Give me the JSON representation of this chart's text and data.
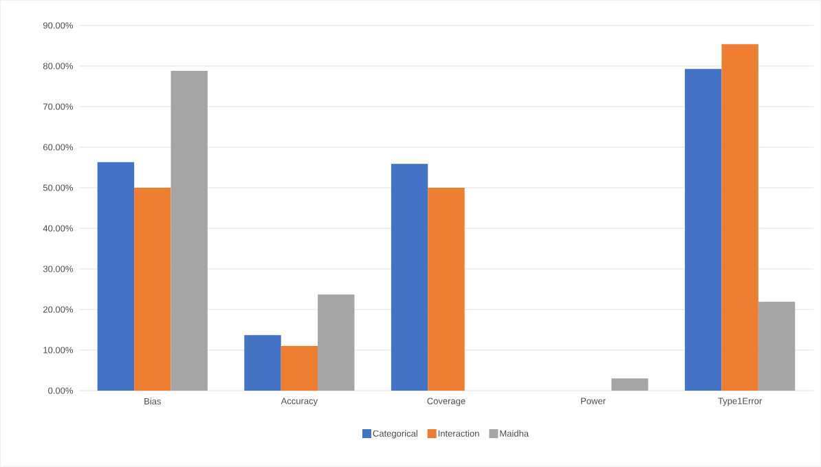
{
  "chart_data": {
    "type": "bar",
    "categories": [
      "Bias",
      "Accuracy",
      "Coverage",
      "Power",
      "Type1Error"
    ],
    "series": [
      {
        "name": "Categorical",
        "color": "#4472c4",
        "values": [
          56.3,
          13.7,
          55.9,
          0,
          79.3
        ]
      },
      {
        "name": "Interaction",
        "color": "#ed7d31",
        "values": [
          50.0,
          11.0,
          50.0,
          0,
          85.4
        ]
      },
      {
        "name": "Maidha",
        "color": "#a5a5a5",
        "values": [
          78.8,
          23.7,
          0,
          3.0,
          21.9
        ]
      }
    ],
    "ylim": [
      0,
      90
    ],
    "yticks": [
      {
        "value": 0,
        "label": "0.00%"
      },
      {
        "value": 10,
        "label": "10.00%"
      },
      {
        "value": 20,
        "label": "20.00%"
      },
      {
        "value": 30,
        "label": "30.00%"
      },
      {
        "value": 40,
        "label": "40.00%"
      },
      {
        "value": 50,
        "label": "50.00%"
      },
      {
        "value": 60,
        "label": "60.00%"
      },
      {
        "value": 70,
        "label": "70.00%"
      },
      {
        "value": 80,
        "label": "80.00%"
      },
      {
        "value": 90,
        "label": "90.00%"
      }
    ],
    "grid": "y",
    "legend": "bottom"
  }
}
